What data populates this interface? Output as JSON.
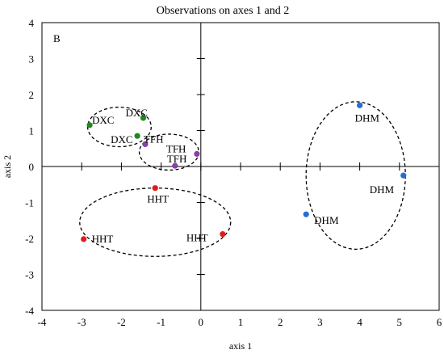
{
  "chart_data": {
    "type": "scatter",
    "title": "Observations on axes 1 and 2",
    "panel_label": "B",
    "xlabel": "axis 1",
    "ylabel": "axis 2",
    "xlim": [
      -4,
      6
    ],
    "ylim": [
      -4,
      4
    ],
    "xticks": [
      "-4",
      "-3",
      "-2",
      "-1",
      "0",
      "1",
      "2",
      "3",
      "4",
      "5",
      "6"
    ],
    "yticks": [
      "-4",
      "-3",
      "-2",
      "-1",
      "0",
      "1",
      "2",
      "3",
      "4"
    ],
    "grid": false,
    "colors": {
      "DXC": "#1e8a1e",
      "TFH": "#8b3ea8",
      "HHT": "#e31a1c",
      "DHM": "#1f6fdb"
    },
    "points": [
      {
        "group": "DXC",
        "label": "DXC",
        "x": -2.8,
        "y": 1.15
      },
      {
        "group": "DXC",
        "label": "DXC",
        "x": -1.45,
        "y": 1.35
      },
      {
        "group": "DXC",
        "label": "DXC",
        "x": -1.6,
        "y": 0.85
      },
      {
        "group": "TFH",
        "label": "TFH",
        "x": -1.4,
        "y": 0.62
      },
      {
        "group": "TFH",
        "label": "TFH",
        "x": -0.1,
        "y": 0.35
      },
      {
        "group": "TFH",
        "label": "TFH",
        "x": -0.65,
        "y": 0.02
      },
      {
        "group": "HHT",
        "label": "HHT",
        "x": -1.15,
        "y": -0.6
      },
      {
        "group": "HHT",
        "label": "HHT",
        "x": -2.95,
        "y": -2.02
      },
      {
        "group": "HHT",
        "label": "HHT",
        "x": 0.55,
        "y": -1.88
      },
      {
        "group": "DHM",
        "label": "DHM",
        "x": 4.0,
        "y": 1.7
      },
      {
        "group": "DHM",
        "label": "DHM",
        "x": 5.1,
        "y": -0.25
      },
      {
        "group": "DHM",
        "label": "DHM",
        "x": 2.65,
        "y": -1.33
      }
    ],
    "ellipses": [
      {
        "group": "DXC",
        "cx": -2.05,
        "cy": 1.1,
        "rx": 0.8,
        "ry": 0.55,
        "angle": 0
      },
      {
        "group": "TFH",
        "cx": -0.8,
        "cy": 0.4,
        "rx": 0.75,
        "ry": 0.5,
        "angle": 0
      },
      {
        "group": "HHT",
        "cx": -1.15,
        "cy": -1.55,
        "rx": 1.9,
        "ry": 0.95,
        "angle": 0
      },
      {
        "group": "DHM",
        "cx": 3.9,
        "cy": -0.25,
        "rx": 1.25,
        "ry": 2.05,
        "angle": 0
      }
    ]
  }
}
